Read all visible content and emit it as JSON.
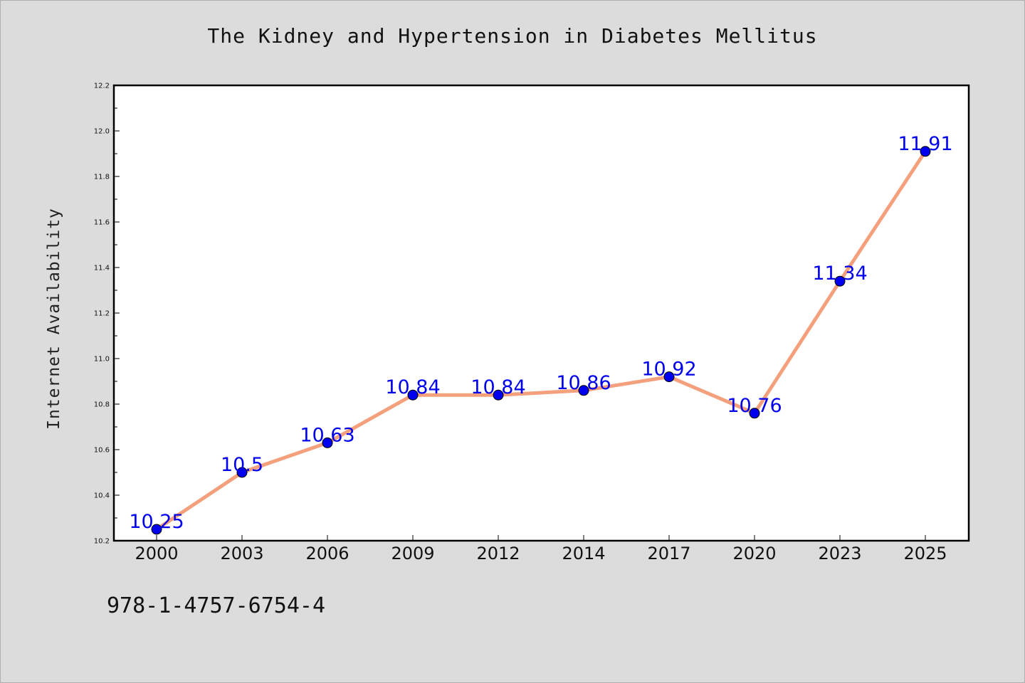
{
  "chart_data": {
    "type": "line",
    "title": "The Kidney and Hypertension in Diabetes Mellitus",
    "ylabel": "Internet Availability",
    "xlabel": "",
    "categories": [
      "2000",
      "2003",
      "2006",
      "2009",
      "2012",
      "2014",
      "2017",
      "2020",
      "2023",
      "2025"
    ],
    "series": [
      {
        "values": [
          10.25,
          10.5,
          10.63,
          10.84,
          10.84,
          10.86,
          10.92,
          10.76,
          11.34,
          11.91
        ],
        "data_labels": [
          "10.25",
          "10.5",
          "10.63",
          "10.84",
          "10.84",
          "10.86",
          "10.92",
          "10.76",
          "11.34",
          "11.91"
        ],
        "line_color": "#f4a07c",
        "marker_color": "#0000ee",
        "label_color": "#0000ee"
      }
    ],
    "ylim": [
      10.2,
      12.2
    ],
    "yticks": [
      "10.2",
      "10.4",
      "10.6",
      "10.8",
      "11.0",
      "11.2",
      "11.4",
      "11.6",
      "11.8",
      "12.0",
      "12.2"
    ],
    "grid": false,
    "legend": "none"
  },
  "footer": {
    "isbn": "978-1-4757-6754-4"
  }
}
